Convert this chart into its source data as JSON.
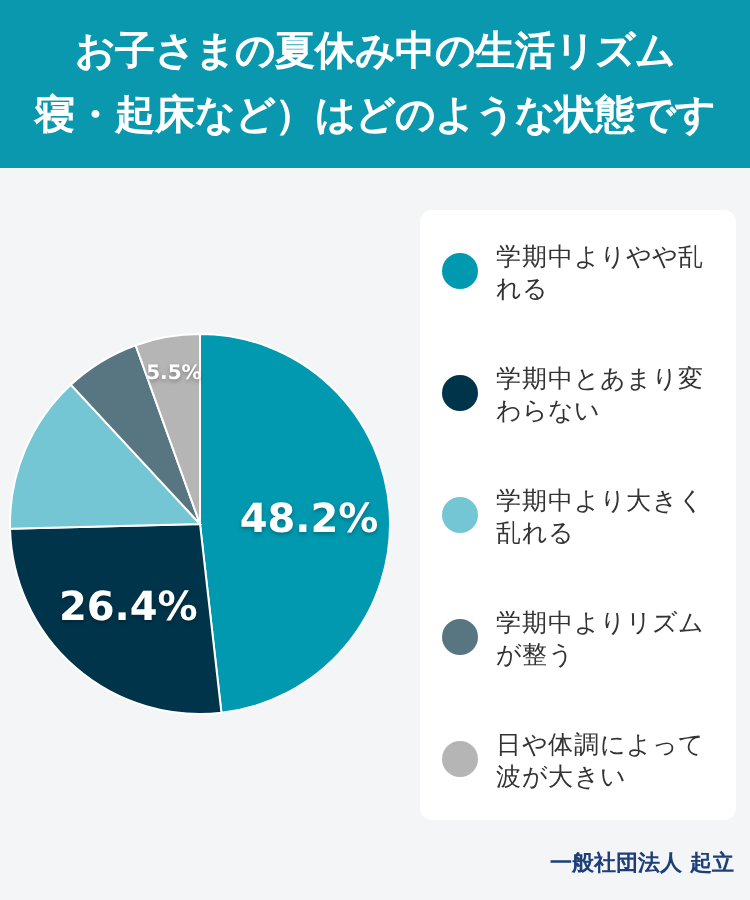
{
  "chart_data": {
    "type": "pie",
    "title": "お子さまの夏休み中の生活リズム",
    "subtitle": "寝・起床など）はどのような状態です",
    "categories": [
      "学期中よりやや乱れる",
      "学期中とあまり変わらない",
      "学期中より大きく乱れる",
      "学期中よりリズムが整う",
      "日や体調によって波が大きい"
    ],
    "values": [
      48.2,
      26.4,
      13.5,
      6.4,
      5.5
    ],
    "colors": [
      "#0099b0",
      "#00344a",
      "#74c6d4",
      "#587682",
      "#b5b5b5"
    ],
    "value_labels": [
      "48.2%",
      "26.4%",
      null,
      null,
      "5.5%"
    ],
    "legend": "right",
    "annotations": [
      "一般社団法人 起立"
    ]
  }
}
